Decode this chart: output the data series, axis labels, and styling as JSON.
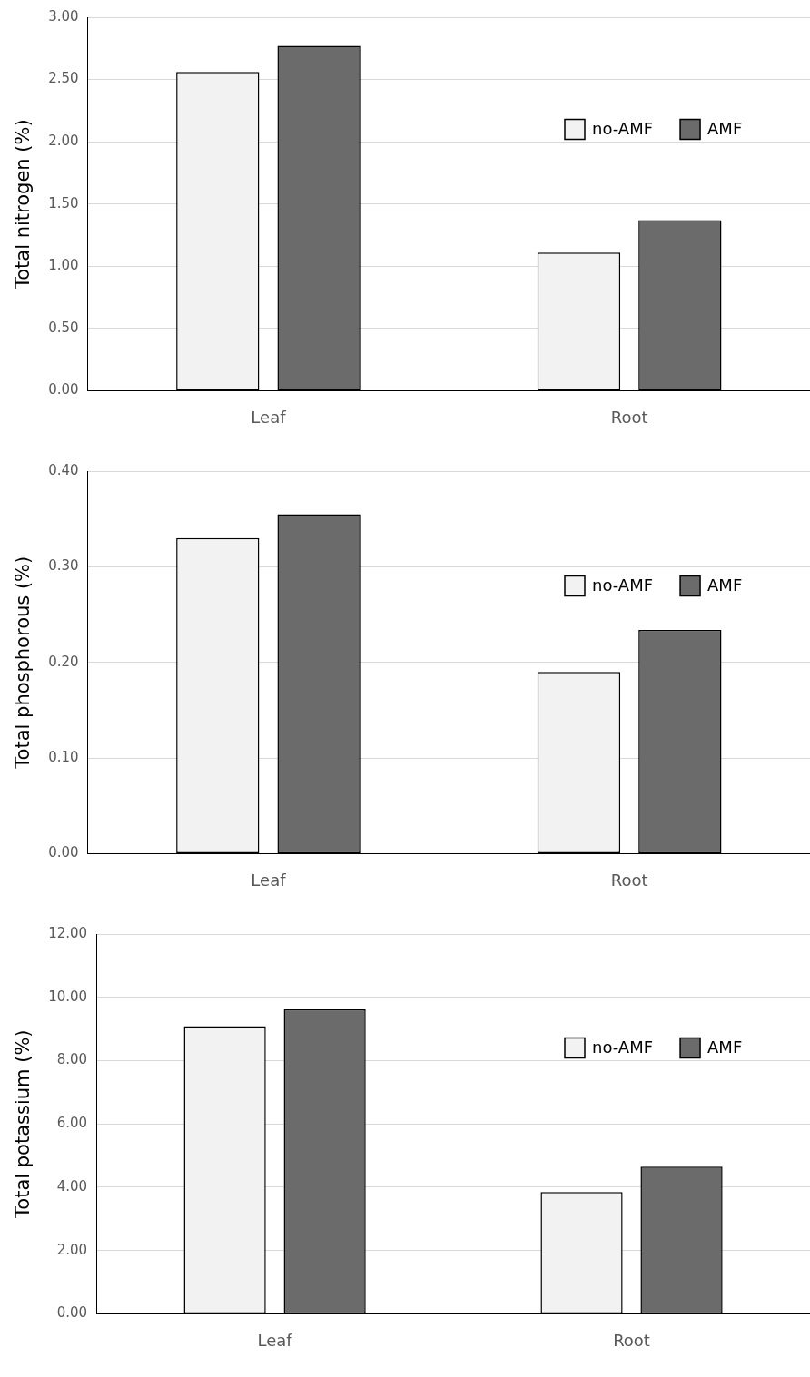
{
  "chart_data": [
    {
      "type": "bar",
      "ylabel": "Total nitrogen (%)",
      "categories": [
        "Leaf",
        "Root"
      ],
      "series": [
        {
          "name": "no-AMF",
          "color": "#f2f2f2",
          "values": [
            2.56,
            1.11
          ]
        },
        {
          "name": "AMF",
          "color": "#6b6b6b",
          "values": [
            2.77,
            1.37
          ]
        }
      ],
      "ylim": [
        0,
        3
      ],
      "yticks": [
        {
          "value": 0,
          "label": "0.00"
        },
        {
          "value": 0.5,
          "label": "0.50"
        },
        {
          "value": 1,
          "label": "1.00"
        },
        {
          "value": 1.5,
          "label": "1.50"
        },
        {
          "value": 2,
          "label": "2.00"
        },
        {
          "value": 2.5,
          "label": "2.50"
        },
        {
          "value": 3,
          "label": "3.00"
        }
      ],
      "grid": "y",
      "legend": "right"
    },
    {
      "type": "bar",
      "ylabel": "Total phosphorous (%)",
      "categories": [
        "Leaf",
        "Root"
      ],
      "series": [
        {
          "name": "no-AMF",
          "color": "#f2f2f2",
          "values": [
            0.33,
            0.19
          ]
        },
        {
          "name": "AMF",
          "color": "#6b6b6b",
          "values": [
            0.355,
            0.234
          ]
        }
      ],
      "ylim": [
        0,
        0.4
      ],
      "yticks": [
        {
          "value": 0,
          "label": "0.00"
        },
        {
          "value": 0.1,
          "label": "0.10"
        },
        {
          "value": 0.2,
          "label": "0.20"
        },
        {
          "value": 0.3,
          "label": "0.30"
        },
        {
          "value": 0.4,
          "label": "0.40"
        }
      ],
      "grid": "y",
      "legend": "right"
    },
    {
      "type": "bar",
      "ylabel": "Total potassium (%)",
      "categories": [
        "Leaf",
        "Root"
      ],
      "series": [
        {
          "name": "no-AMF",
          "color": "#f2f2f2",
          "values": [
            9.09,
            3.85
          ]
        },
        {
          "name": "AMF",
          "color": "#6b6b6b",
          "values": [
            9.62,
            4.65
          ]
        }
      ],
      "ylim": [
        0,
        12
      ],
      "yticks": [
        {
          "value": 0,
          "label": "0.00"
        },
        {
          "value": 2,
          "label": "2.00"
        },
        {
          "value": 4,
          "label": "4.00"
        },
        {
          "value": 6,
          "label": "6.00"
        },
        {
          "value": 8,
          "label": "8.00"
        },
        {
          "value": 10,
          "label": "10.00"
        },
        {
          "value": 12,
          "label": "12.00"
        }
      ],
      "grid": "y",
      "legend": "right"
    }
  ]
}
